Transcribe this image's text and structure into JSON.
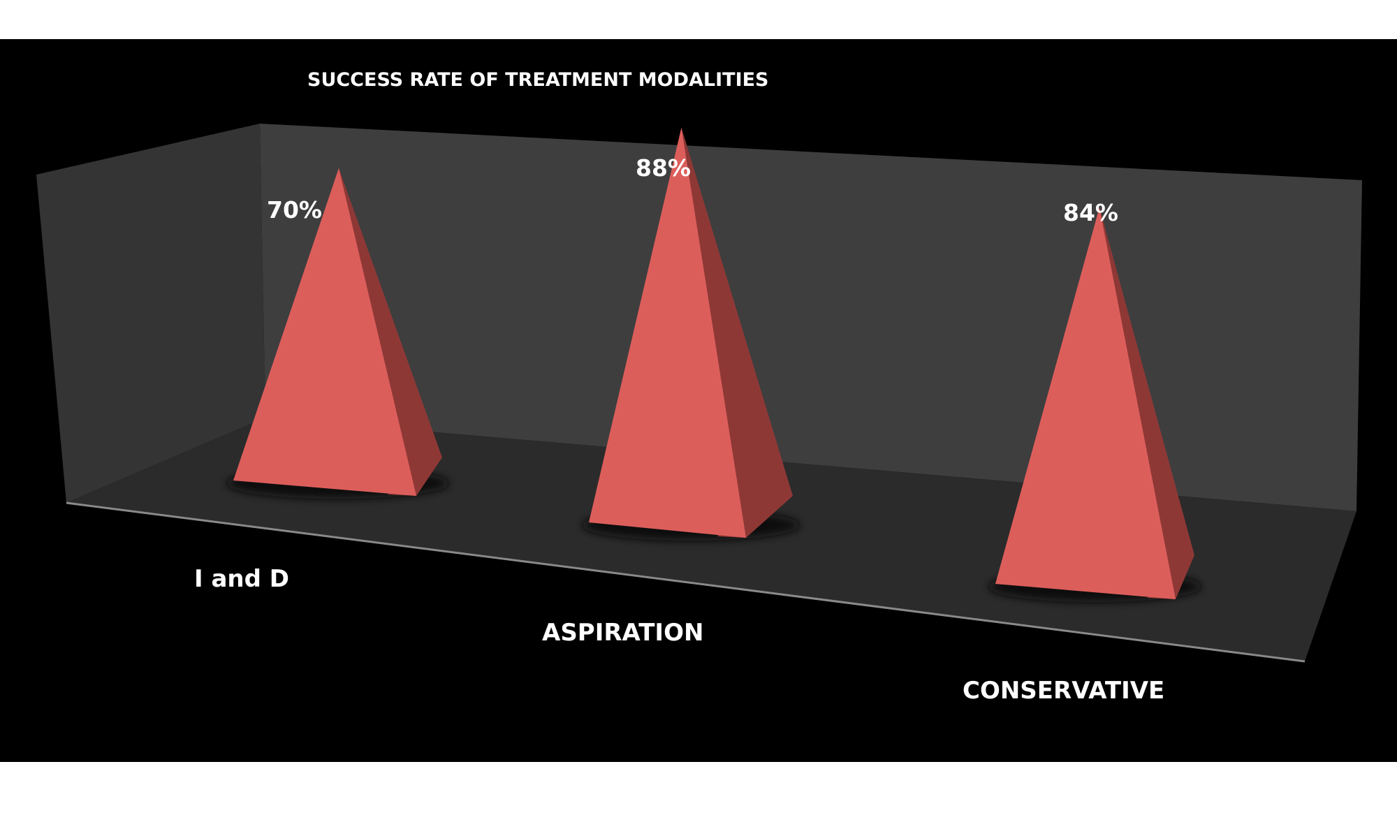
{
  "chart_data": {
    "type": "bar",
    "shape": "pyramid-3d",
    "title": "SUCCESS RATE OF TREATMENT MODALITIES",
    "categories": [
      "I and D",
      "ASPIRATION",
      "CONSERVATIVE"
    ],
    "series": [
      {
        "values": [
          70,
          88,
          84
        ],
        "labels": [
          "70%",
          "88%",
          "84%"
        ]
      }
    ],
    "ylim": [
      0,
      100
    ],
    "grid": false,
    "legend": "none",
    "colors": {
      "background": "#000000",
      "back_wall": "#3e3e3e",
      "side_wall": "#343434",
      "floor": "#2b2b2b",
      "pyramid_front": "#dc5e5b",
      "pyramid_side": "#8e3836",
      "text": "#ffffff"
    }
  }
}
